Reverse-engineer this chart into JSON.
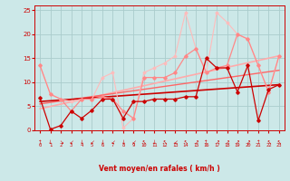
{
  "title": "",
  "xlabel": "Vent moyen/en rafales ( km/h )",
  "xlabel_color": "#cc0000",
  "background_color": "#cce8e8",
  "grid_color": "#aacccc",
  "xlim": [
    -0.5,
    23.5
  ],
  "ylim": [
    0,
    26
  ],
  "yticks": [
    0,
    5,
    10,
    15,
    20,
    25
  ],
  "xticks": [
    0,
    1,
    2,
    3,
    4,
    5,
    6,
    7,
    8,
    9,
    10,
    11,
    12,
    13,
    14,
    15,
    16,
    17,
    18,
    19,
    20,
    21,
    22,
    23
  ],
  "lines": [
    {
      "x": [
        0,
        1,
        2,
        3,
        4,
        5,
        6,
        7,
        8,
        9,
        10,
        11,
        12,
        13,
        14,
        15,
        16,
        17,
        18,
        19,
        20,
        21,
        22,
        23
      ],
      "y": [
        6.7,
        0.2,
        1.0,
        4.0,
        2.5,
        4.2,
        6.5,
        6.5,
        2.5,
        6.0,
        6.0,
        6.5,
        6.5,
        6.5,
        7.0,
        7.0,
        15.0,
        13.0,
        13.0,
        8.0,
        13.5,
        2.0,
        8.5,
        9.5
      ],
      "color": "#cc0000",
      "linewidth": 0.9,
      "marker": "D",
      "markersize": 1.8,
      "zorder": 5
    },
    {
      "x": [
        0,
        1,
        2,
        3,
        4,
        5,
        6,
        7,
        8,
        9,
        10,
        11,
        12,
        13,
        14,
        15,
        16,
        17,
        18,
        19,
        20,
        21,
        22,
        23
      ],
      "y": [
        13.5,
        7.5,
        6.5,
        4.0,
        6.5,
        6.5,
        7.0,
        6.5,
        4.0,
        2.5,
        11.0,
        11.0,
        11.0,
        12.0,
        15.5,
        17.0,
        12.0,
        13.0,
        13.5,
        20.0,
        19.0,
        13.5,
        8.0,
        15.5
      ],
      "color": "#ff8888",
      "linewidth": 0.9,
      "marker": "D",
      "markersize": 1.8,
      "zorder": 4
    },
    {
      "x": [
        0,
        23
      ],
      "y": [
        6.0,
        9.5
      ],
      "color": "#cc0000",
      "linewidth": 1.2,
      "marker": null,
      "markersize": 0,
      "zorder": 3
    },
    {
      "x": [
        0,
        23
      ],
      "y": [
        4.5,
        15.5
      ],
      "color": "#ffaaaa",
      "linewidth": 1.2,
      "marker": null,
      "markersize": 0,
      "zorder": 2
    },
    {
      "x": [
        0,
        23
      ],
      "y": [
        5.5,
        12.5
      ],
      "color": "#ff6666",
      "linewidth": 1.0,
      "marker": null,
      "markersize": 0,
      "zorder": 2
    },
    {
      "x": [
        0,
        1,
        2,
        3,
        4,
        5,
        6,
        7,
        8,
        9,
        10,
        11,
        12,
        13,
        14,
        15,
        16,
        17,
        18,
        19,
        20,
        21,
        22,
        23
      ],
      "y": [
        13.5,
        7.5,
        6.5,
        6.0,
        6.5,
        6.5,
        11.0,
        12.0,
        0.5,
        2.5,
        12.0,
        13.0,
        14.0,
        15.5,
        24.5,
        17.0,
        12.0,
        24.5,
        22.5,
        20.0,
        19.0,
        13.5,
        8.0,
        15.5
      ],
      "color": "#ffbbbb",
      "linewidth": 0.8,
      "marker": "D",
      "markersize": 1.5,
      "zorder": 3
    }
  ],
  "wind_symbols": [
    "↑",
    "↓",
    "↘",
    "↙",
    "↓",
    "↙",
    "↓",
    "↙",
    "↓",
    "↙",
    "↖",
    "↓",
    "↖",
    "↙",
    "↖",
    "↗",
    "↑",
    "↗",
    "↗",
    "↗",
    "↗",
    "↑",
    "↖",
    "↖"
  ]
}
